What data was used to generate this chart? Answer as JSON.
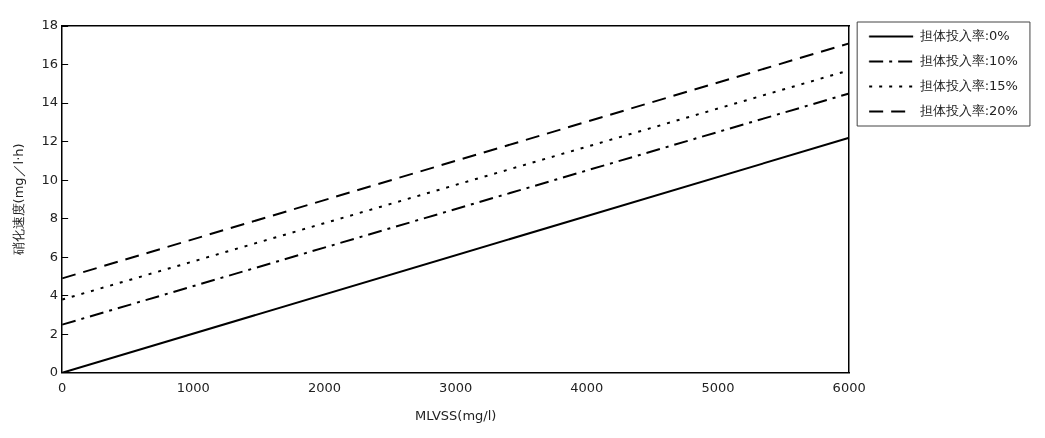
{
  "chart_data": {
    "type": "line",
    "xlabel": "MLVSS(mg/l)",
    "ylabel": "硝化速度(mg／l·h)",
    "xlim": [
      0,
      6000
    ],
    "xticks": [
      0,
      1000,
      2000,
      3000,
      4000,
      5000,
      6000
    ],
    "ylim": [
      0,
      18
    ],
    "yticks": [
      0,
      2,
      4,
      6,
      8,
      10,
      12,
      14,
      16,
      18
    ],
    "x": [
      0,
      6000
    ],
    "legend": "top right",
    "grid": false,
    "marker": "none",
    "series": [
      {
        "name": "担体投入率:0%",
        "color": "#000000",
        "line_style": "solid",
        "values": [
          0,
          12.2
        ]
      },
      {
        "name": "担体投入率:10%",
        "color": "#000000",
        "line_style": "dashdot",
        "values": [
          2.5,
          14.5
        ]
      },
      {
        "name": "担体投入率:15%",
        "color": "#000000",
        "line_style": "dotted",
        "values": [
          3.8,
          15.7
        ]
      },
      {
        "name": "担体投入率:20%",
        "color": "#000000",
        "line_style": "dashed",
        "values": [
          4.9,
          17.1
        ]
      }
    ]
  }
}
